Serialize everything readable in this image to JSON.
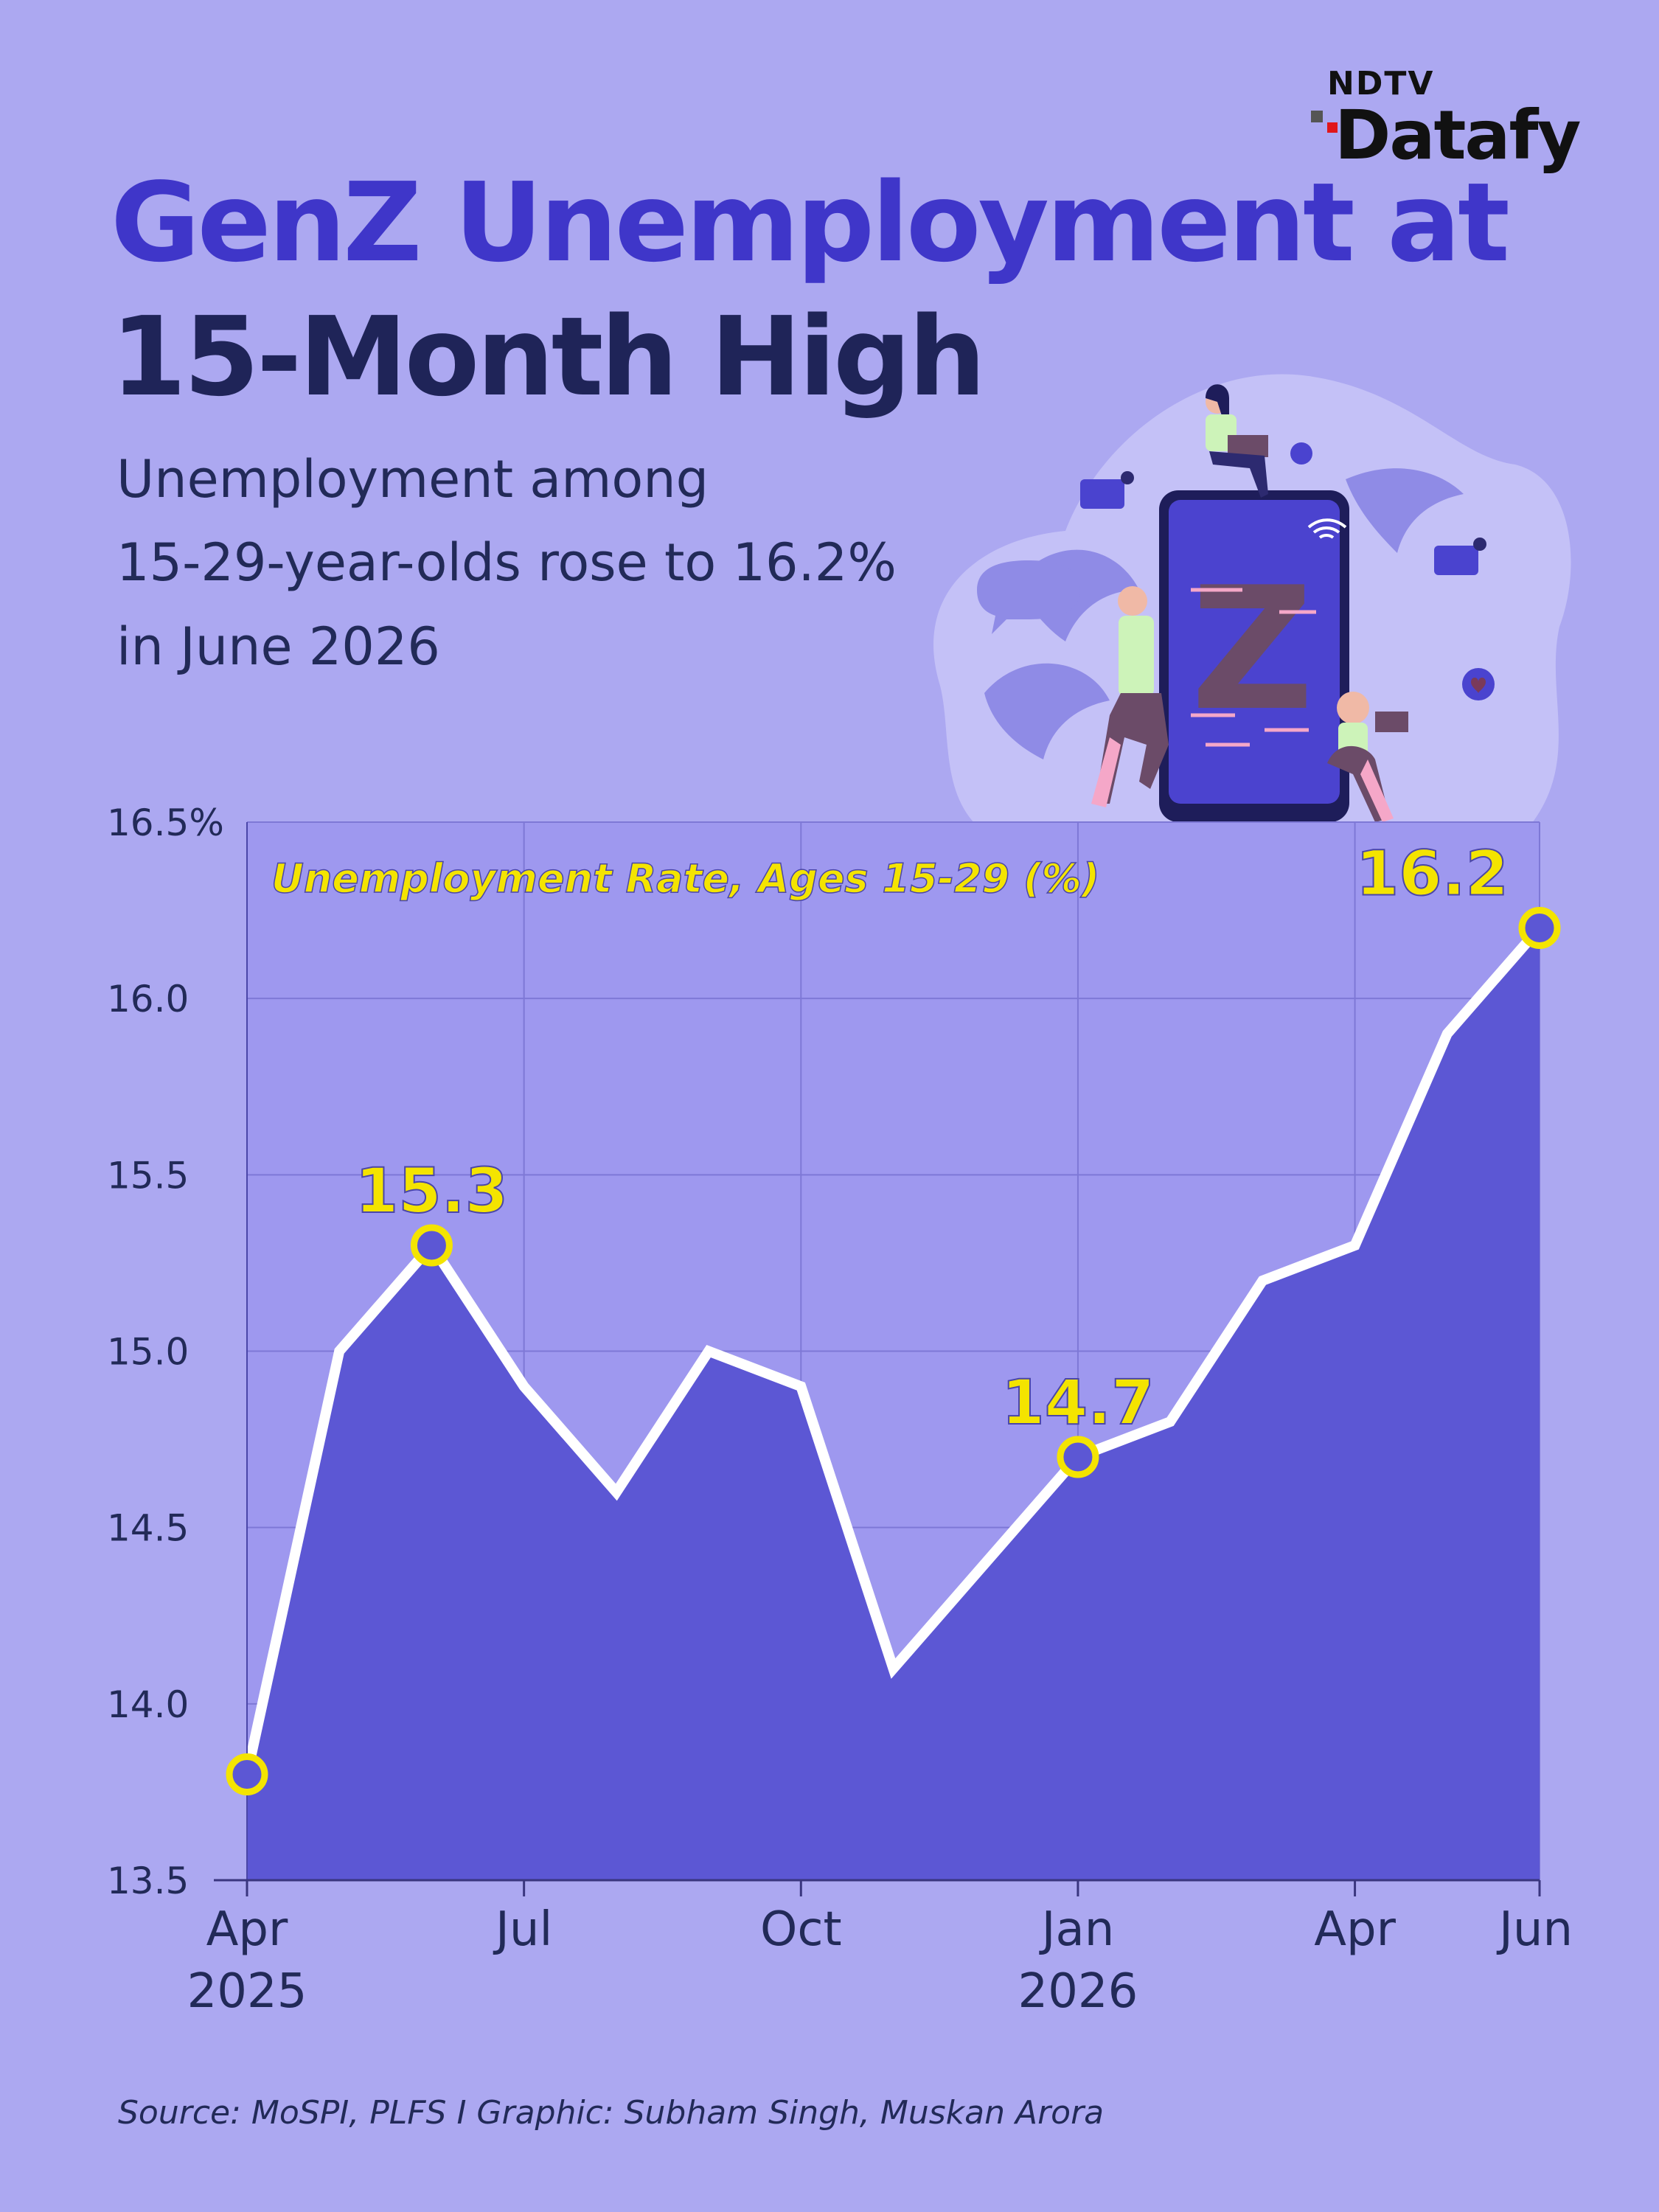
{
  "logo": {
    "brand": "NDTV",
    "product": "Datafy"
  },
  "title": {
    "line1": "GenZ Unemployment at",
    "line2": "15-Month High"
  },
  "subtitle": {
    "line1": "Unemployment among",
    "line2": "15-29-year-olds rose to 16.2%",
    "line3": "in June 2026"
  },
  "colors": {
    "background": "#aca8f1",
    "plot_bg": "#9e98ef",
    "area_fill": "#5c57d4",
    "line": "#ffffff",
    "highlight": "#f4e400",
    "title_accent": "#3f36c9",
    "title_dark": "#1f2458"
  },
  "illustration": {
    "icon": "genz-phone-illustration",
    "letter": "Z"
  },
  "chart_data": {
    "type": "area",
    "title": "Unemployment Rate, Ages 15-29 (%)",
    "x": [
      "Apr 2025",
      "May 2025",
      "Jun 2025",
      "Jul 2025",
      "Aug 2025",
      "Sep 2025",
      "Oct 2025",
      "Nov 2025",
      "Dec 2025",
      "Jan 2026",
      "Feb 2026",
      "Mar 2026",
      "Apr 2026",
      "May 2026",
      "Jun 2026"
    ],
    "values": [
      13.8,
      15.0,
      15.3,
      14.9,
      14.6,
      15.0,
      14.9,
      14.1,
      14.4,
      14.7,
      14.8,
      15.2,
      15.3,
      15.9,
      16.2
    ],
    "ylim": [
      13.5,
      16.5
    ],
    "y_ticks": [
      "16.5%",
      "16.0",
      "15.5",
      "15.0",
      "14.5",
      "14.0",
      "13.5"
    ],
    "x_ticks": [
      {
        "line1": "Apr",
        "line2": "2025",
        "index": 0
      },
      {
        "line1": "Jul",
        "line2": "",
        "index": 3
      },
      {
        "line1": "Oct",
        "line2": "",
        "index": 6
      },
      {
        "line1": "Jan",
        "line2": "2026",
        "index": 9
      },
      {
        "line1": "Apr",
        "line2": "",
        "index": 12
      },
      {
        "line1": "Jun",
        "line2": "",
        "index": 14
      }
    ],
    "highlighted_points": [
      {
        "index": 0,
        "label": ""
      },
      {
        "index": 2,
        "label": "15.3"
      },
      {
        "index": 9,
        "label": "14.7"
      },
      {
        "index": 14,
        "label": "16.2"
      }
    ],
    "grid": true
  },
  "source": "Source: MoSPI, PLFS I Graphic: Subham Singh, Muskan Arora"
}
